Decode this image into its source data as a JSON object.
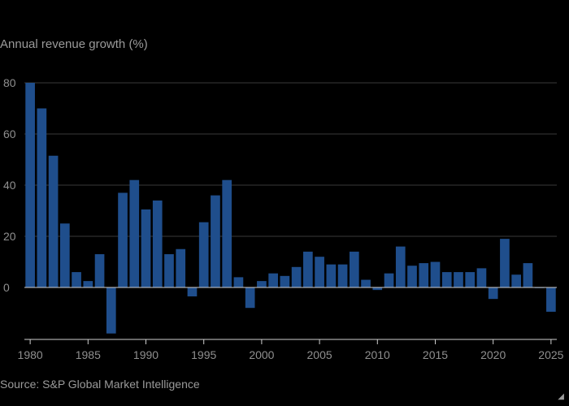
{
  "title": "Annual revenue growth (%)",
  "source": "Source: S&P Global Market Intelligence",
  "corner_mark": "◢",
  "colors": {
    "background": "#000000",
    "bar": "#1f4e8c",
    "grid": "#3a3a3a",
    "axis": "#cfcfcf",
    "text": "#9a9a9a"
  },
  "chart_data": {
    "type": "bar",
    "title": "Annual revenue growth (%)",
    "xlabel": "",
    "ylabel": "",
    "ylim": [
      -18,
      80
    ],
    "xlim": [
      1979.5,
      2025.5
    ],
    "yticks": [
      0,
      20,
      40,
      60,
      80
    ],
    "xticks": [
      1980,
      1985,
      1990,
      1995,
      2000,
      2005,
      2010,
      2015,
      2020,
      2025
    ],
    "grid": true,
    "categories": [
      1980,
      1981,
      1982,
      1983,
      1984,
      1985,
      1986,
      1987,
      1988,
      1989,
      1990,
      1991,
      1992,
      1993,
      1994,
      1995,
      1996,
      1997,
      1998,
      1999,
      2000,
      2001,
      2002,
      2003,
      2004,
      2005,
      2006,
      2007,
      2008,
      2009,
      2010,
      2011,
      2012,
      2013,
      2014,
      2015,
      2016,
      2017,
      2018,
      2019,
      2020,
      2021,
      2022,
      2023,
      2024,
      2025
    ],
    "values": [
      80,
      70,
      51.5,
      25,
      6,
      2.5,
      13,
      -18,
      37,
      42,
      30.5,
      34,
      13,
      15,
      -3.5,
      25.5,
      36,
      42,
      4,
      -8,
      2.5,
      5.5,
      4.5,
      8,
      14,
      12,
      9,
      9,
      14,
      3,
      -1,
      5.5,
      16,
      8.5,
      9.5,
      10,
      6,
      6,
      6,
      7.5,
      -4.5,
      19,
      5,
      9.5,
      0,
      -9.5
    ]
  }
}
